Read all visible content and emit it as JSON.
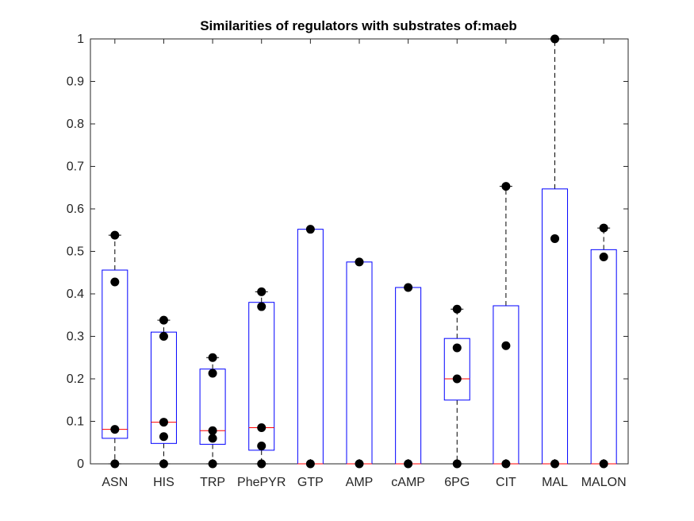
{
  "chart_data": {
    "type": "boxplot",
    "title": "Similarities of regulators with substrates of:maeb",
    "xlabel": "",
    "ylabel": "",
    "ylim": [
      0,
      1
    ],
    "yticks": [
      "0",
      "0.1",
      "0.2",
      "0.3",
      "0.4",
      "0.5",
      "0.6",
      "0.7",
      "0.8",
      "0.9",
      "1"
    ],
    "categories": [
      "ASN",
      "HIS",
      "TRP",
      "PhePYR",
      "GTP",
      "AMP",
      "cAMP",
      "6PG",
      "CIT",
      "MAL",
      "MALON"
    ],
    "boxes": [
      {
        "q1": 0.06,
        "median": 0.081,
        "q3": 0.456,
        "wlo": 0,
        "whi": 0.538
      },
      {
        "q1": 0.048,
        "median": 0.098,
        "q3": 0.31,
        "wlo": 0,
        "whi": 0.338
      },
      {
        "q1": 0.046,
        "median": 0.078,
        "q3": 0.223,
        "wlo": 0,
        "whi": 0.25
      },
      {
        "q1": 0.032,
        "median": 0.085,
        "q3": 0.38,
        "wlo": 0,
        "whi": 0.405
      },
      {
        "q1": 0,
        "median": 0,
        "q3": 0.552,
        "wlo": 0,
        "whi": 0.552
      },
      {
        "q1": 0,
        "median": 0,
        "q3": 0.475,
        "wlo": 0,
        "whi": 0.475
      },
      {
        "q1": 0,
        "median": 0,
        "q3": 0.415,
        "wlo": 0,
        "whi": 0.415
      },
      {
        "q1": 0.15,
        "median": 0.2,
        "q3": 0.295,
        "wlo": 0,
        "whi": 0.364
      },
      {
        "q1": 0,
        "median": 0,
        "q3": 0.372,
        "wlo": 0,
        "whi": 0.653
      },
      {
        "q1": 0,
        "median": 0,
        "q3": 0.647,
        "wlo": 0,
        "whi": 1.0
      },
      {
        "q1": 0,
        "median": 0,
        "q3": 0.504,
        "wlo": 0,
        "whi": 0.555
      }
    ],
    "points": [
      [
        0.538,
        0.428,
        0.081,
        0
      ],
      [
        0.338,
        0.3,
        0.098,
        0.064,
        0
      ],
      [
        0.25,
        0.213,
        0.078,
        0.06,
        0
      ],
      [
        0.405,
        0.37,
        0.085,
        0.042,
        0
      ],
      [
        0.552,
        0
      ],
      [
        0.475,
        0
      ],
      [
        0.415,
        0
      ],
      [
        0.364,
        0.273,
        0.2,
        0
      ],
      [
        0.653,
        0.278,
        0
      ],
      [
        1.0,
        0.53,
        0
      ],
      [
        0.555,
        0.487,
        0
      ]
    ],
    "colors": {
      "box": "#0000ff",
      "median": "#ff0000",
      "whisker": "#000000",
      "point": "#000000",
      "axis": "#262626"
    }
  }
}
